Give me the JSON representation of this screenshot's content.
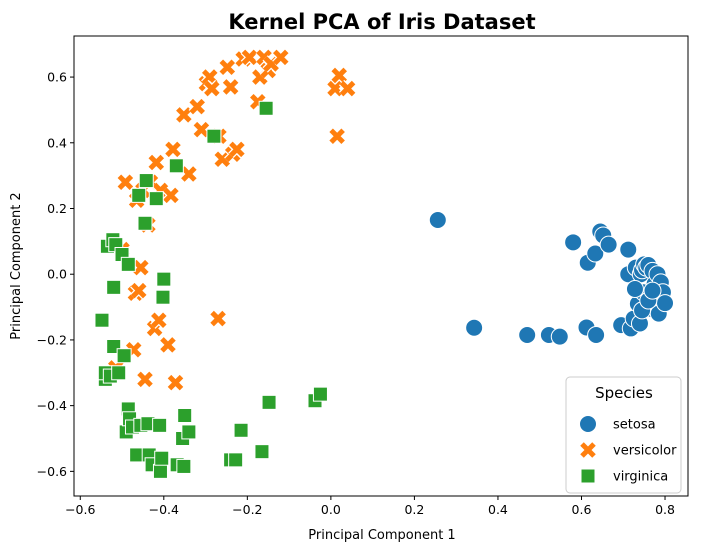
{
  "chart_data": {
    "type": "scatter",
    "title": "Kernel PCA of Iris Dataset",
    "xlabel": "Principal Component 1",
    "ylabel": "Principal Component 2",
    "xlim": [
      -0.615,
      0.855
    ],
    "ylim": [
      -0.675,
      0.725
    ],
    "xticks": [
      -0.6,
      -0.4,
      -0.2,
      0.0,
      0.2,
      0.4,
      0.6,
      0.8
    ],
    "xtick_labels": [
      "−0.6",
      "−0.4",
      "−0.2",
      "0.0",
      "0.2",
      "0.4",
      "0.6",
      "0.8"
    ],
    "yticks": [
      -0.6,
      -0.4,
      -0.2,
      0.0,
      0.2,
      0.4,
      0.6
    ],
    "ytick_labels": [
      "−0.6",
      "−0.4",
      "−0.2",
      "0.0",
      "0.2",
      "0.4",
      "0.6"
    ],
    "grid": false,
    "legend": {
      "title": "Species",
      "placement": "bottom-right"
    },
    "series": [
      {
        "name": "setosa",
        "marker": "circle",
        "color": "#1f77b4",
        "points": [
          [
            0.256,
            0.165
          ],
          [
            0.343,
            -0.163
          ],
          [
            0.47,
            -0.185
          ],
          [
            0.522,
            -0.185
          ],
          [
            0.548,
            -0.19
          ],
          [
            0.58,
            0.097
          ],
          [
            0.612,
            -0.162
          ],
          [
            0.615,
            0.035
          ],
          [
            0.633,
            0.063
          ],
          [
            0.635,
            -0.185
          ],
          [
            0.645,
            0.13
          ],
          [
            0.652,
            0.118
          ],
          [
            0.665,
            0.09
          ],
          [
            0.695,
            -0.155
          ],
          [
            0.712,
            0.075
          ],
          [
            0.712,
            0.0
          ],
          [
            0.718,
            -0.165
          ],
          [
            0.725,
            -0.135
          ],
          [
            0.73,
            0.02
          ],
          [
            0.735,
            -0.09
          ],
          [
            0.74,
            -0.15
          ],
          [
            0.742,
            0.0
          ],
          [
            0.745,
            0.012
          ],
          [
            0.748,
            -0.055
          ],
          [
            0.75,
            0.03
          ],
          [
            0.755,
            0.02
          ],
          [
            0.76,
            0.028
          ],
          [
            0.765,
            -0.105
          ],
          [
            0.77,
            0.01
          ],
          [
            0.775,
            -0.03
          ],
          [
            0.778,
            -0.075
          ],
          [
            0.782,
            0.0
          ],
          [
            0.785,
            -0.12
          ],
          [
            0.79,
            -0.025
          ],
          [
            0.795,
            -0.055
          ],
          [
            0.8,
            -0.088
          ],
          [
            0.745,
            -0.11
          ],
          [
            0.76,
            -0.08
          ],
          [
            0.77,
            -0.05
          ],
          [
            0.728,
            -0.045
          ]
        ]
      },
      {
        "name": "versicolor",
        "marker": "x",
        "color": "#ff7f0e",
        "points": [
          [
            -0.515,
            -0.285
          ],
          [
            -0.5,
            0.075
          ],
          [
            -0.492,
            0.28
          ],
          [
            -0.472,
            -0.23
          ],
          [
            -0.468,
            -0.058
          ],
          [
            -0.465,
            0.225
          ],
          [
            -0.46,
            -0.05
          ],
          [
            -0.455,
            0.02
          ],
          [
            -0.45,
            0.255
          ],
          [
            -0.445,
            -0.32
          ],
          [
            -0.438,
            0.15
          ],
          [
            -0.432,
            0.28
          ],
          [
            -0.422,
            -0.165
          ],
          [
            -0.418,
            0.34
          ],
          [
            -0.412,
            -0.14
          ],
          [
            -0.408,
            0.255
          ],
          [
            -0.39,
            -0.215
          ],
          [
            -0.383,
            0.24
          ],
          [
            -0.378,
            0.38
          ],
          [
            -0.372,
            -0.33
          ],
          [
            -0.352,
            0.485
          ],
          [
            -0.34,
            0.305
          ],
          [
            -0.32,
            0.51
          ],
          [
            -0.31,
            0.44
          ],
          [
            -0.298,
            0.58
          ],
          [
            -0.29,
            0.6
          ],
          [
            -0.285,
            0.565
          ],
          [
            -0.27,
            -0.135
          ],
          [
            -0.268,
            0.42
          ],
          [
            -0.26,
            0.35
          ],
          [
            -0.248,
            0.63
          ],
          [
            -0.24,
            0.57
          ],
          [
            -0.235,
            0.365
          ],
          [
            -0.225,
            0.38
          ],
          [
            -0.21,
            0.655
          ],
          [
            -0.195,
            0.66
          ],
          [
            -0.175,
            0.525
          ],
          [
            -0.17,
            0.6
          ],
          [
            -0.16,
            0.66
          ],
          [
            -0.15,
            0.62
          ],
          [
            -0.143,
            0.64
          ],
          [
            -0.12,
            0.66
          ],
          [
            0.01,
            0.565
          ],
          [
            0.015,
            0.42
          ],
          [
            0.02,
            0.605
          ],
          [
            0.04,
            0.565
          ]
        ]
      },
      {
        "name": "virginica",
        "marker": "square",
        "color": "#2ca02c",
        "points": [
          [
            -0.548,
            -0.14
          ],
          [
            -0.54,
            -0.32
          ],
          [
            -0.54,
            -0.3
          ],
          [
            -0.535,
            0.085
          ],
          [
            -0.528,
            -0.31
          ],
          [
            -0.522,
            0.105
          ],
          [
            -0.52,
            -0.04
          ],
          [
            -0.52,
            -0.22
          ],
          [
            -0.515,
            0.09
          ],
          [
            -0.508,
            -0.3
          ],
          [
            -0.5,
            0.06
          ],
          [
            -0.495,
            -0.248
          ],
          [
            -0.49,
            -0.48
          ],
          [
            -0.485,
            -0.41
          ],
          [
            -0.485,
            0.03
          ],
          [
            -0.482,
            -0.44
          ],
          [
            -0.475,
            -0.465
          ],
          [
            -0.465,
            -0.55
          ],
          [
            -0.46,
            0.24
          ],
          [
            -0.455,
            -0.46
          ],
          [
            -0.445,
            0.155
          ],
          [
            -0.442,
            0.285
          ],
          [
            -0.438,
            -0.455
          ],
          [
            -0.435,
            -0.55
          ],
          [
            -0.428,
            -0.58
          ],
          [
            -0.418,
            0.23
          ],
          [
            -0.41,
            -0.46
          ],
          [
            -0.408,
            -0.6
          ],
          [
            -0.405,
            -0.56
          ],
          [
            -0.402,
            -0.07
          ],
          [
            -0.4,
            -0.015
          ],
          [
            -0.37,
            0.33
          ],
          [
            -0.368,
            -0.58
          ],
          [
            -0.355,
            -0.5
          ],
          [
            -0.352,
            -0.585
          ],
          [
            -0.35,
            -0.43
          ],
          [
            -0.34,
            -0.48
          ],
          [
            -0.28,
            0.42
          ],
          [
            -0.24,
            -0.565
          ],
          [
            -0.228,
            -0.565
          ],
          [
            -0.215,
            -0.475
          ],
          [
            -0.165,
            -0.54
          ],
          [
            -0.155,
            0.505
          ],
          [
            -0.148,
            -0.39
          ],
          [
            -0.038,
            -0.385
          ],
          [
            -0.025,
            -0.365
          ]
        ]
      }
    ]
  }
}
